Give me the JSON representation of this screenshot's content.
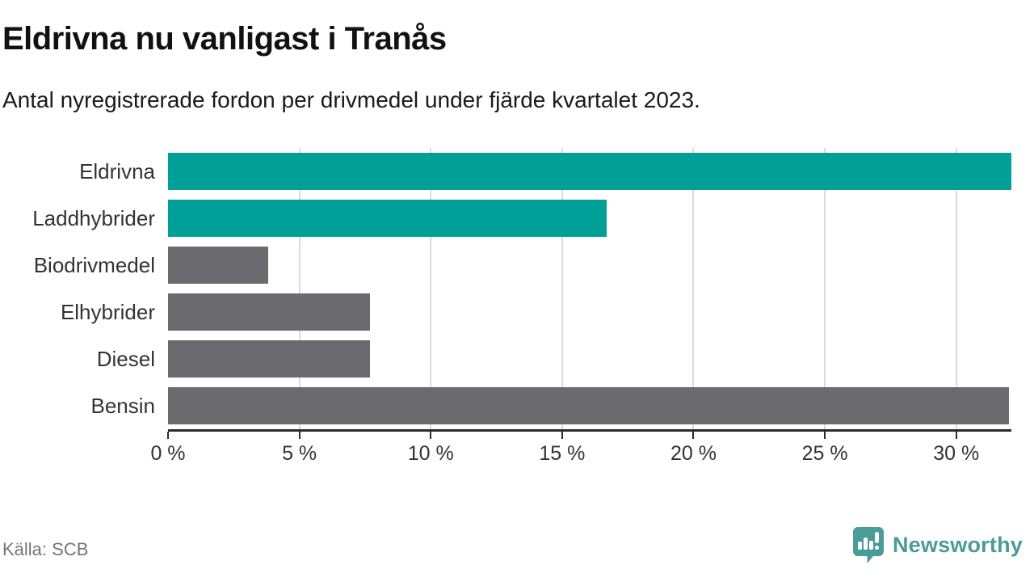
{
  "chart_data": {
    "type": "bar",
    "orientation": "horizontal",
    "title": "Eldrivna nu vanligast i Tranås",
    "subtitle": "Antal nyregistrerade fordon per drivmedel under fjärde kvartalet 2023.",
    "categories": [
      "Eldrivna",
      "Laddhybrider",
      "Biodrivmedel",
      "Elhybrider",
      "Diesel",
      "Bensin"
    ],
    "values": [
      32.1,
      16.7,
      3.8,
      7.7,
      7.7,
      32.0
    ],
    "value_unit": "%",
    "bar_colors": [
      "#00a099",
      "#00a099",
      "#6a6a6f",
      "#6a6a6f",
      "#6a6a6f",
      "#6a6a6f"
    ],
    "xlim": [
      0,
      32.1
    ],
    "x_ticks": [
      0,
      5,
      10,
      15,
      20,
      25,
      30
    ],
    "x_tick_labels": [
      "0 %",
      "5 %",
      "10 %",
      "15 %",
      "20 %",
      "25 %",
      "30 %"
    ],
    "grid": "vertical",
    "legend": "none",
    "colors": {
      "highlight": "#00a099",
      "neutral": "#6a6a6f",
      "gridline": "#dbdbdb",
      "axis": "#2b2b2b",
      "text": "#333333"
    }
  },
  "footer": {
    "source": "Källa: SCB",
    "brand": "Newsworthy",
    "brand_color": "#4a9b99"
  }
}
